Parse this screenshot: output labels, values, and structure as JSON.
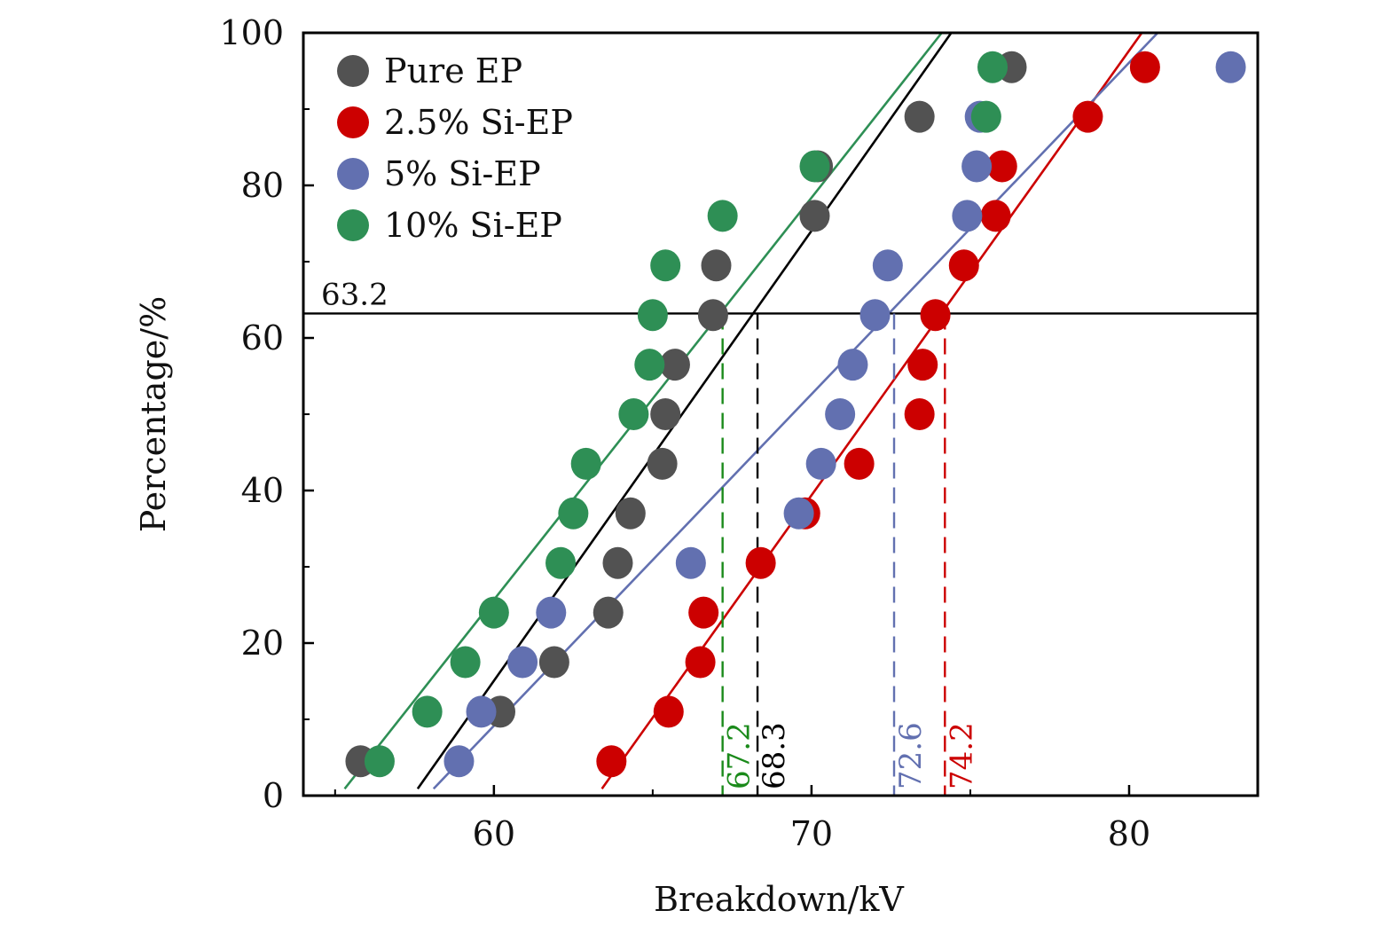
{
  "chart_data": {
    "type": "scatter",
    "title": "",
    "xlabel": "Breakdown/kV",
    "ylabel": "Percentage/%",
    "xlim": [
      54.0,
      84.05
    ],
    "ylim": [
      0,
      100
    ],
    "xticks": [
      60,
      70,
      80
    ],
    "xticks_minor": [
      55,
      65,
      75
    ],
    "yticks": [
      0,
      20,
      40,
      60,
      80,
      100
    ],
    "yticks_minor": [
      10,
      30,
      50,
      70,
      90
    ],
    "grid": false,
    "legend_position": "top-left",
    "reference_line": {
      "y": 63.2,
      "label": "63.2"
    },
    "series": [
      {
        "name": "Pure EP",
        "color": "#525252",
        "line_color": "#000000",
        "x": [
          55.8,
          60.2,
          61.9,
          63.6,
          63.9,
          64.3,
          65.3,
          65.4,
          65.7,
          66.9,
          67.0,
          70.1,
          70.2,
          73.4,
          76.3
        ],
        "y": [
          4.5,
          11.0,
          17.5,
          24.0,
          30.5,
          37.0,
          43.5,
          50.0,
          56.5,
          63.0,
          69.5,
          76.0,
          82.5,
          89.0,
          95.5
        ],
        "fit_line": {
          "x": [
            57.6,
            74.4
          ],
          "y": [
            0.9,
            100
          ]
        },
        "characteristic_value": 68.3,
        "characteristic_label": "68.3"
      },
      {
        "name": "2.5% Si-EP",
        "color": "#CC0000",
        "line_color": "#CC0000",
        "x": [
          63.7,
          65.5,
          66.5,
          66.6,
          68.4,
          69.8,
          71.5,
          73.4,
          73.5,
          73.9,
          74.8,
          75.8,
          76.0,
          78.7,
          80.5
        ],
        "y": [
          4.5,
          11.0,
          17.5,
          24.0,
          30.5,
          37.0,
          43.5,
          50.0,
          56.5,
          63.0,
          69.5,
          76.0,
          82.5,
          89.0,
          95.5
        ],
        "fit_line": {
          "x": [
            63.4,
            80.4
          ],
          "y": [
            0.9,
            100
          ]
        },
        "characteristic_value": 74.2,
        "characteristic_label": "74.2"
      },
      {
        "name": "5% Si-EP",
        "color": "#6270B0",
        "line_color": "#6270B0",
        "x": [
          58.9,
          59.6,
          60.9,
          61.8,
          66.2,
          69.6,
          70.3,
          70.9,
          71.3,
          72.0,
          72.4,
          74.9,
          75.2,
          75.3,
          83.2
        ],
        "y": [
          4.5,
          11.0,
          17.5,
          24.0,
          30.5,
          37.0,
          43.5,
          50.0,
          56.5,
          63.0,
          69.5,
          76.0,
          82.5,
          89.0,
          95.5
        ],
        "fit_line": {
          "x": [
            58.1,
            80.9
          ],
          "y": [
            0.9,
            100
          ]
        },
        "characteristic_value": 72.6,
        "characteristic_label": "72.6"
      },
      {
        "name": "10% Si-EP",
        "color": "#2E8F55",
        "line_color": "#2E8F55",
        "x": [
          56.4,
          57.9,
          59.1,
          60.0,
          62.1,
          62.5,
          62.9,
          64.4,
          64.9,
          65.0,
          65.4,
          67.2,
          70.1,
          75.5,
          75.7
        ],
        "y": [
          4.5,
          11.0,
          17.5,
          24.0,
          30.5,
          37.0,
          43.5,
          50.0,
          56.5,
          63.0,
          69.5,
          76.0,
          82.5,
          89.0,
          95.5
        ],
        "fit_line": {
          "x": [
            55.3,
            74.1
          ],
          "y": [
            0.9,
            100
          ]
        },
        "characteristic_value": 67.2,
        "characteristic_label": "67.2",
        "label_color": "#1A8A1A"
      }
    ]
  }
}
